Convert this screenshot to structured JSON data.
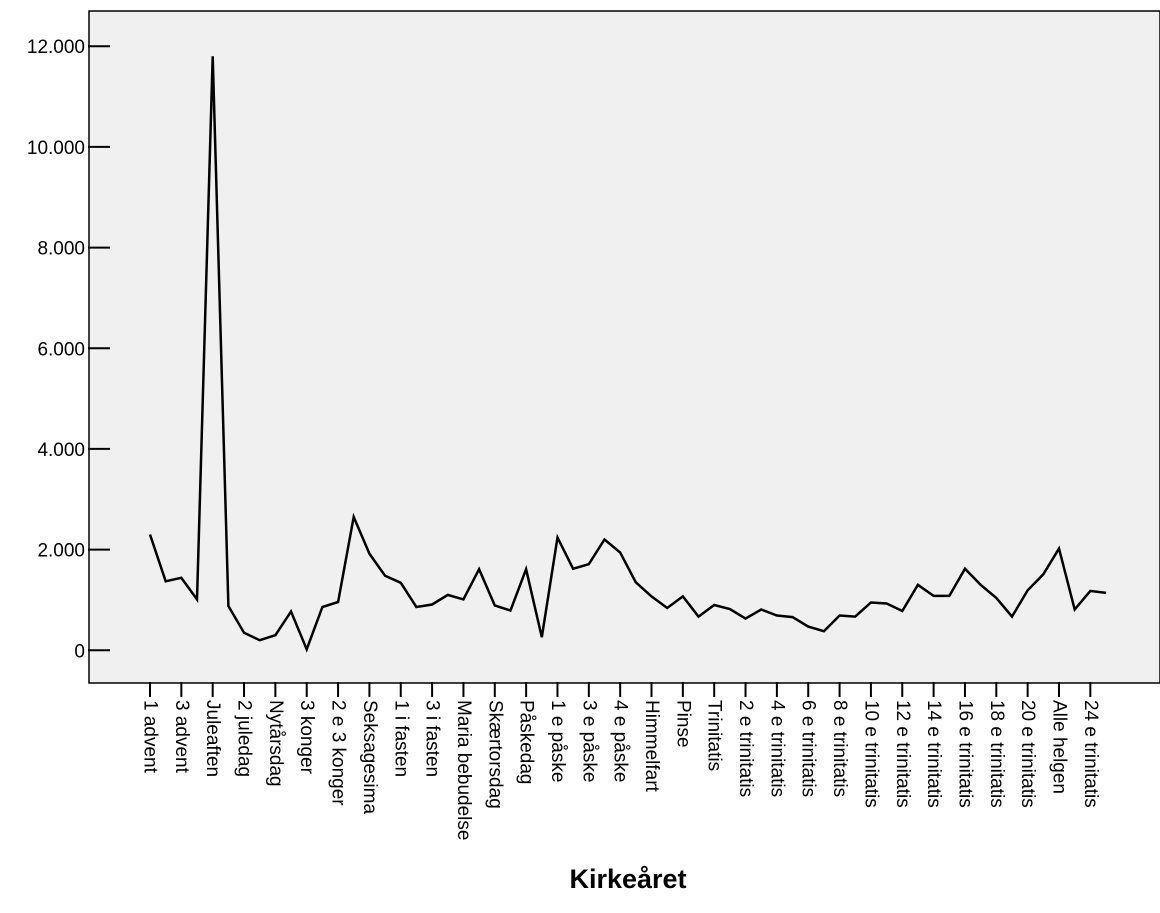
{
  "chart_data": {
    "type": "line",
    "xlabel": "Kirkeåret",
    "ylabel": "",
    "ylim": [
      -650,
      12700
    ],
    "yticks": [
      0,
      2000,
      4000,
      6000,
      8000,
      10000,
      12000
    ],
    "ytick_labels": [
      "0",
      "2.000",
      "4.000",
      "6.000",
      "8.000",
      "10.000",
      "12.000"
    ],
    "x_tick_labels": [
      "1 advent",
      "3 advent",
      "Juleaften",
      "2 juledag",
      "Nytårsdag",
      "3 konger",
      "2 e 3 konger",
      "Seksagesima",
      "1 i fasten",
      "3 i fasten",
      "Maria bebudelse",
      "Skærtorsdag",
      "Påskedag",
      "1 e påske",
      "3 e påske",
      "4 e påske",
      "Himmelfart",
      "Pinse",
      "Trinitatis",
      "2 e trinitatis",
      "4 e trinitatis",
      "6 e trinitatis",
      "8 e trinitatis",
      "10 e trinitatis",
      "12 e trinitatis",
      "14 e trinitatis",
      "16 e trinitatis",
      "18 e trinitatis",
      "20 e trinitatis",
      "Alle helgen",
      "24 e trinitatis"
    ],
    "series": [
      {
        "values": [
          2300,
          1370,
          1440,
          1010,
          11800,
          880,
          350,
          200,
          300,
          770,
          20,
          860,
          960,
          2650,
          1920,
          1480,
          1340,
          860,
          910,
          1100,
          1010,
          1610,
          890,
          790,
          1610,
          260,
          2240,
          1620,
          1710,
          2200,
          1940,
          1350,
          1070,
          840,
          1070,
          670,
          900,
          820,
          630,
          810,
          690,
          660,
          470,
          380,
          690,
          670,
          950,
          930,
          780,
          1300,
          1080,
          1080,
          1620,
          1300,
          1040,
          670,
          1190,
          1510,
          2020,
          810,
          1180,
          1140
        ]
      }
    ],
    "grid": false,
    "colors": {
      "plot_background": "#f0f0f0",
      "line": "#000000",
      "axis": "#000000"
    }
  }
}
